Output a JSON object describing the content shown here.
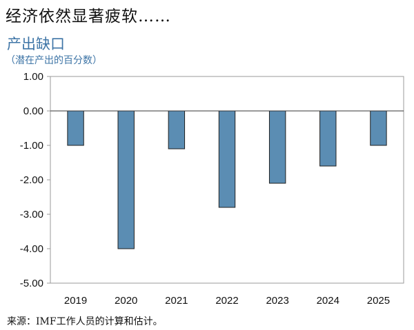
{
  "slide_title": "经济依然显著疲软……",
  "source": "来源：IMF工作人员的计算和估计。",
  "colors": {
    "bar_fill": "#5b8db3",
    "bar_stroke": "#1f1f1f",
    "title_blue": "#3d74a6"
  },
  "chart_data": {
    "type": "bar",
    "title": "产出缺口",
    "subtitle": "（潜在产出的百分数）",
    "categories": [
      "2019",
      "2020",
      "2021",
      "2022",
      "2023",
      "2024",
      "2025"
    ],
    "values": [
      -1.0,
      -4.0,
      -1.1,
      -2.8,
      -2.1,
      -1.6,
      -1.0
    ],
    "ylim": [
      -5,
      1
    ],
    "yticks": [
      1,
      0,
      -1,
      -2,
      -3,
      -4,
      -5
    ],
    "ytick_labels": [
      "1.00",
      "0.00",
      "-1.00",
      "-2.00",
      "-3.00",
      "-4.00",
      "-5.00"
    ],
    "grid": false
  }
}
